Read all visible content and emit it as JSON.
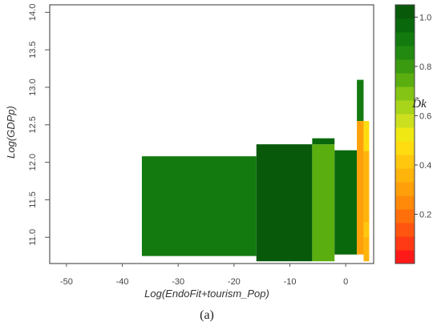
{
  "chart_data": {
    "type": "heatmap",
    "xlabel": "Log(EndoFit+tourism_Pop)",
    "ylabel": "Log(GDPp)",
    "caption": "(a)",
    "legend_title": "D̃k",
    "xlim": [
      -53,
      5
    ],
    "ylim": [
      10.65,
      14.1
    ],
    "x_ticks": [
      -50,
      -40,
      -30,
      -20,
      -10,
      0
    ],
    "x_tick_labels": [
      "-50",
      "-40",
      "-30",
      "-20",
      "-10",
      "0"
    ],
    "y_ticks": [
      11.0,
      11.5,
      12.0,
      12.5,
      13.0,
      13.5,
      14.0
    ],
    "y_tick_labels": [
      "11.0",
      "11.5",
      "12.0",
      "12.5",
      "13.0",
      "13.5",
      "14.0"
    ],
    "grid": false,
    "legend_position": "right",
    "colorbar": {
      "min": 0.0,
      "max": 1.05,
      "ticks": [
        0.2,
        0.4,
        0.6,
        0.8,
        1.0
      ],
      "tick_labels": [
        "0.2",
        "0.4",
        "0.6",
        "0.8",
        "1.0"
      ],
      "colors": [
        "#ff1a1a",
        "#ff3a14",
        "#ff5510",
        "#ff700c",
        "#ff8a0a",
        "#ffa00a",
        "#ffb40c",
        "#ffc80e",
        "#ffdc10",
        "#f0e812",
        "#cce020",
        "#a8d41a",
        "#84c414",
        "#5aae10",
        "#3a9a10",
        "#228a10",
        "#127a0e",
        "#0a680c",
        "#085a0a"
      ]
    },
    "cells": [
      {
        "x0": -36.5,
        "x1": -16.0,
        "y0": 10.75,
        "y1": 12.08,
        "value": 0.91
      },
      {
        "x0": -16.0,
        "x1": -6.0,
        "y0": 10.68,
        "y1": 12.24,
        "value": 1.02
      },
      {
        "x0": -6.0,
        "x1": -2.0,
        "y0": 10.68,
        "y1": 12.24,
        "value": 0.76
      },
      {
        "x0": -6.0,
        "x1": -2.0,
        "y0": 12.24,
        "y1": 12.32,
        "value": 0.96
      },
      {
        "x0": -2.0,
        "x1": 2.0,
        "y0": 10.77,
        "y1": 12.16,
        "value": 0.96
      },
      {
        "x0": 2.0,
        "x1": 3.2,
        "y0": 12.55,
        "y1": 13.1,
        "value": 0.91
      },
      {
        "x0": 2.0,
        "x1": 3.2,
        "y0": 10.77,
        "y1": 12.55,
        "value": 0.33
      },
      {
        "x0": 3.2,
        "x1": 4.2,
        "y0": 12.15,
        "y1": 12.55,
        "value": 0.47
      },
      {
        "x0": 3.2,
        "x1": 4.2,
        "y0": 10.68,
        "y1": 12.15,
        "value": 0.36
      },
      {
        "x0": 3.2,
        "x1": 4.2,
        "y0": 11.0,
        "y1": 11.2,
        "value": 0.43
      }
    ]
  }
}
